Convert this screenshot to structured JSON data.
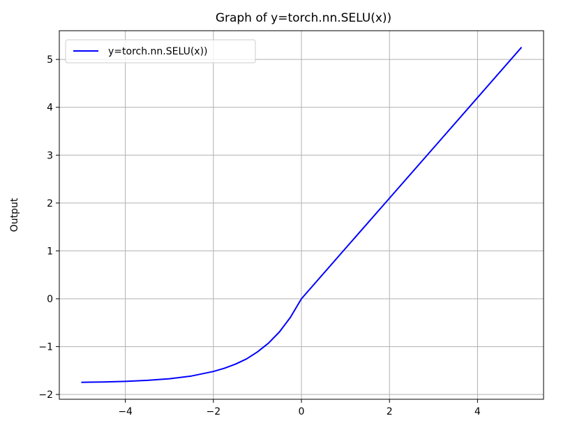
{
  "chart_data": {
    "type": "line",
    "title": "Graph of y=torch.nn.SELU(x))",
    "xlabel": "",
    "ylabel": "Output",
    "xlim": [
      -5.5,
      5.5
    ],
    "ylim": [
      -2.1,
      5.6
    ],
    "xticks": [
      -4,
      -2,
      0,
      2,
      4
    ],
    "xtick_labels": [
      "−4",
      "−2",
      "0",
      "2",
      "4"
    ],
    "yticks": [
      -2,
      -1,
      0,
      1,
      2,
      3,
      4,
      5
    ],
    "ytick_labels": [
      "−2",
      "−1",
      "0",
      "1",
      "2",
      "3",
      "4",
      "5"
    ],
    "grid": true,
    "legend": {
      "position": "top-left",
      "entries": [
        "y=torch.nn.SELU(x))"
      ]
    },
    "series": [
      {
        "name": "y=torch.nn.SELU(x))",
        "color": "#0000ff",
        "x": [
          -5,
          -4.5,
          -4,
          -3.5,
          -3,
          -2.5,
          -2,
          -1.75,
          -1.5,
          -1.25,
          -1,
          -0.75,
          -0.5,
          -0.25,
          0,
          1,
          2,
          3,
          4,
          5
        ],
        "y": [
          -1.746,
          -1.739,
          -1.726,
          -1.705,
          -1.671,
          -1.615,
          -1.52,
          -1.452,
          -1.367,
          -1.258,
          -1.111,
          -0.929,
          -0.692,
          -0.388,
          0.0,
          1.051,
          2.101,
          3.152,
          4.203,
          5.254
        ]
      }
    ]
  }
}
